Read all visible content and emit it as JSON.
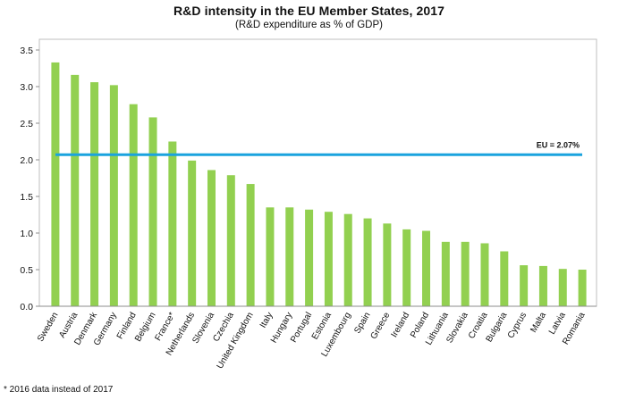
{
  "chart_data": {
    "type": "bar",
    "title": "R&D intensity in the EU Member States, 2017",
    "subtitle": "(R&D expenditure as % of GDP)",
    "xlabel": "",
    "ylabel": "",
    "ylim": [
      0,
      3.5
    ],
    "yticks": [
      "0.0",
      "0.5",
      "1.0",
      "1.5",
      "2.0",
      "2.5",
      "3.0",
      "3.5"
    ],
    "categories": [
      "Sweden",
      "Austria",
      "Denmark",
      "Germany",
      "Finland",
      "Belgium",
      "France*",
      "Netherlands",
      "Slovenia",
      "Czechia",
      "United Kingdom",
      "Italy",
      "Hungary",
      "Portugal",
      "Estonia",
      "Luxembourg",
      "Spain",
      "Greece",
      "Ireland",
      "Poland",
      "Lithuania",
      "Slovakia",
      "Croatia",
      "Bulgaria",
      "Cyprus",
      "Malta",
      "Latvia",
      "Romania"
    ],
    "values": [
      3.33,
      3.16,
      3.06,
      3.02,
      2.76,
      2.58,
      2.25,
      1.99,
      1.86,
      1.79,
      1.67,
      1.35,
      1.35,
      1.32,
      1.29,
      1.26,
      1.2,
      1.13,
      1.05,
      1.03,
      0.88,
      0.88,
      0.86,
      0.75,
      0.56,
      0.55,
      0.51,
      0.5
    ],
    "reference_line": {
      "label": "EU = 2.07%",
      "value": 2.07
    },
    "grid": false,
    "bar_color": "#92d050",
    "line_color": "#1aa3de"
  },
  "footnote": "* 2016 data instead of 2017"
}
